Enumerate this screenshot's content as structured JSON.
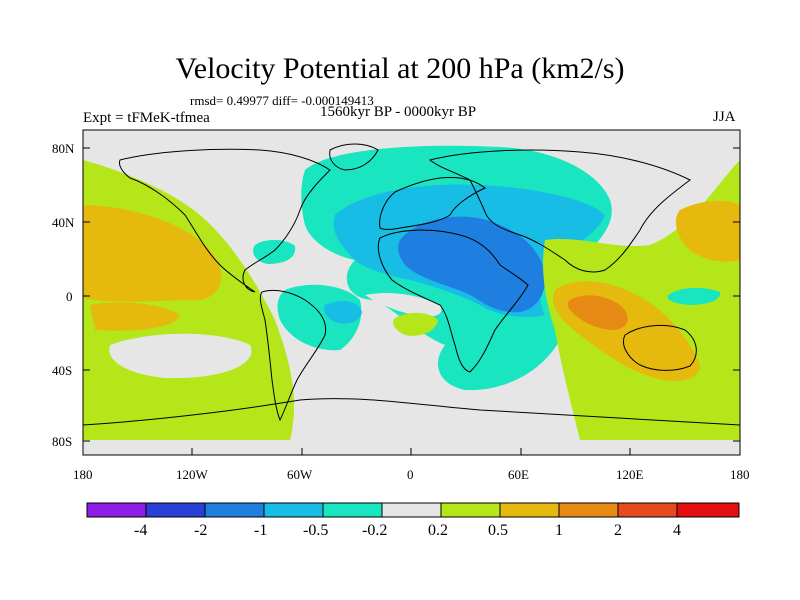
{
  "title": "Velocity Potential at 200 hPa (km2/s)",
  "stats": "rmsd= 0.49977 diff= -0.000149413",
  "experiment": "Expt = tFMeK-tfmea",
  "period": "1560kyr BP - 0000kyr BP",
  "season": "JJA",
  "lat_labels": [
    "80N",
    "40N",
    "0",
    "40S",
    "80S"
  ],
  "lon_labels": [
    "180",
    "120W",
    "60W",
    "0",
    "60E",
    "120E",
    "180"
  ],
  "colorbar": {
    "labels": [
      "-4",
      "-2",
      "-1",
      "-0.5",
      "-0.2",
      "0.2",
      "0.5",
      "1",
      "2",
      "4"
    ],
    "colors": [
      "#8c1ee6",
      "#2a3fd6",
      "#1f7fe0",
      "#18bde6",
      "#19e6c0",
      "#e6e6e6",
      "#b4e61a",
      "#e6b90f",
      "#e68a14",
      "#e64a1f",
      "#e60f0f"
    ]
  }
}
